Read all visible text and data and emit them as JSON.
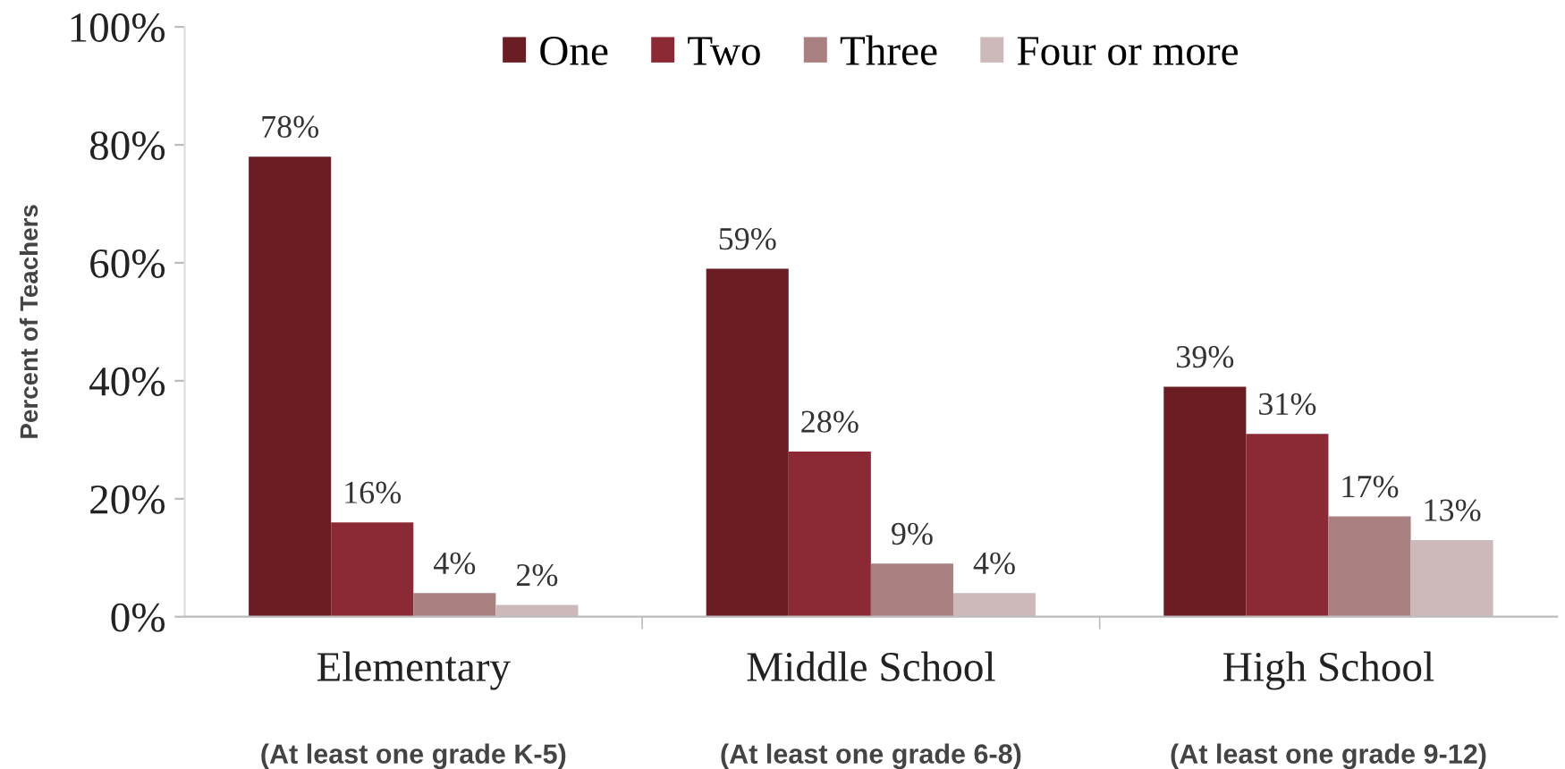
{
  "chart_data": {
    "type": "bar",
    "categories": [
      "Elementary\n(At least one grade K-5)",
      "Middle School\n(At least one grade 6-8)",
      "High School\n(At least one grade 9-12)"
    ],
    "ylabel": "Percent of Teachers",
    "series": [
      {
        "name": "One",
        "color": "#6b1d24",
        "values": [
          78,
          59,
          39
        ],
        "value_labels": [
          "78%",
          "59%",
          "39%"
        ]
      },
      {
        "name": "Two",
        "color": "#8b2a35",
        "values": [
          16,
          28,
          31
        ],
        "value_labels": [
          "16%",
          "28%",
          "31%"
        ]
      },
      {
        "name": "Three",
        "color": "#a88080",
        "values": [
          4,
          9,
          17
        ],
        "value_labels": [
          "4%",
          "9%",
          "17%"
        ]
      },
      {
        "name": "Four or more",
        "color": "#cdb9ba",
        "values": [
          2,
          4,
          13
        ],
        "value_labels": [
          "2%",
          "4%",
          "13%"
        ]
      }
    ],
    "ylim": [
      0,
      100
    ],
    "yticks": [
      {
        "value": 0,
        "label": "0%"
      },
      {
        "value": 20,
        "label": "20%"
      },
      {
        "value": 40,
        "label": "40%"
      },
      {
        "value": 60,
        "label": "60%"
      },
      {
        "value": 80,
        "label": "80%"
      },
      {
        "value": 100,
        "label": "100%"
      }
    ],
    "grid": false,
    "legend": "top"
  }
}
